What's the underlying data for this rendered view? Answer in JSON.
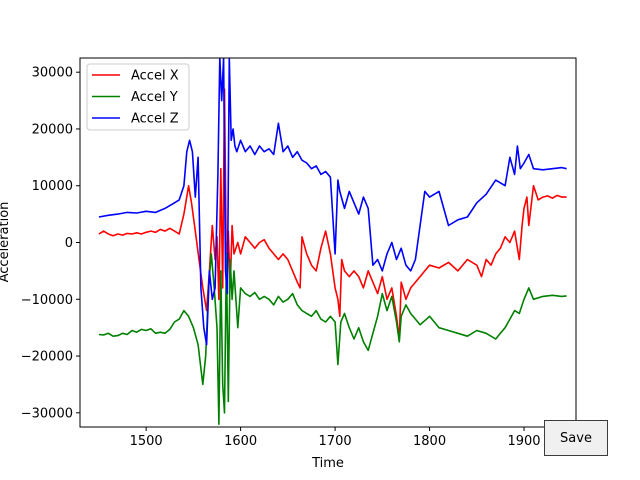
{
  "chart_data": {
    "type": "line",
    "title": "",
    "xlabel": "Time",
    "ylabel": "Acceleration",
    "xlim": [
      1430,
      1955
    ],
    "ylim": [
      -32500,
      32500
    ],
    "xticks": [
      1500,
      1600,
      1700,
      1800,
      1900
    ],
    "yticks": [
      -30000,
      -20000,
      -10000,
      0,
      10000,
      20000,
      30000
    ],
    "xtick_labels": [
      "1500",
      "1600",
      "1700",
      "1800",
      "1900"
    ],
    "ytick_labels": [
      "−30000",
      "−20000",
      "−10000",
      "0",
      "10000",
      "20000",
      "30000"
    ],
    "grid": false,
    "legend_position": "top-left",
    "series": [
      {
        "name": "Accel X",
        "color": "#ff0000",
        "x": [
          1450,
          1455,
          1460,
          1465,
          1470,
          1475,
          1480,
          1485,
          1490,
          1495,
          1500,
          1505,
          1510,
          1515,
          1520,
          1525,
          1530,
          1535,
          1540,
          1545,
          1548,
          1552,
          1556,
          1560,
          1564,
          1567,
          1570,
          1573,
          1575,
          1577,
          1579,
          1581,
          1583,
          1585,
          1587,
          1589,
          1591,
          1593,
          1595,
          1597,
          1600,
          1605,
          1610,
          1615,
          1620,
          1625,
          1630,
          1635,
          1640,
          1645,
          1650,
          1655,
          1660,
          1663,
          1665,
          1670,
          1675,
          1680,
          1685,
          1690,
          1695,
          1700,
          1703,
          1705,
          1707,
          1710,
          1715,
          1720,
          1725,
          1730,
          1735,
          1740,
          1745,
          1750,
          1755,
          1760,
          1765,
          1768,
          1770,
          1775,
          1780,
          1785,
          1790,
          1795,
          1800,
          1810,
          1820,
          1830,
          1840,
          1850,
          1855,
          1860,
          1865,
          1870,
          1875,
          1880,
          1885,
          1890,
          1895,
          1898,
          1900,
          1903,
          1905,
          1910,
          1915,
          1920,
          1925,
          1930,
          1935,
          1940,
          1945
        ],
        "y": [
          1500,
          2000,
          1500,
          1200,
          1500,
          1300,
          1600,
          1500,
          1700,
          1500,
          1800,
          2000,
          1800,
          2300,
          2000,
          2500,
          2000,
          1500,
          5000,
          10000,
          7000,
          2000,
          -3000,
          -8000,
          -12000,
          -5000,
          3000,
          -3000,
          1000,
          -10000,
          13000,
          -8000,
          27000,
          -5000,
          2000,
          -8000,
          3000,
          -2000,
          -1000,
          0,
          -2000,
          1000,
          0,
          -1000,
          0,
          500,
          -1000,
          -2000,
          -3000,
          -2000,
          -3000,
          -5000,
          -7000,
          -8000,
          1000,
          -2000,
          -4000,
          -5000,
          -1000,
          2000,
          -2000,
          -8000,
          -10000,
          -13000,
          -3000,
          -5000,
          -6000,
          -5000,
          -6000,
          -8000,
          -5000,
          -7000,
          -9000,
          -6000,
          -10000,
          -8000,
          -13000,
          -17000,
          -7000,
          -10000,
          -8000,
          -7000,
          -6000,
          -5000,
          -4000,
          -4500,
          -3500,
          -5000,
          -3000,
          -4000,
          -6000,
          -3000,
          -4000,
          -2000,
          -1000,
          1000,
          0,
          2000,
          -3000,
          3000,
          6000,
          8000,
          3000,
          10000,
          7500,
          8000,
          8200,
          7800,
          8300,
          8000,
          8000
        ]
      },
      {
        "name": "Accel Y",
        "color": "#008000",
        "x": [
          1450,
          1455,
          1460,
          1465,
          1470,
          1475,
          1480,
          1485,
          1490,
          1495,
          1500,
          1505,
          1510,
          1515,
          1520,
          1525,
          1530,
          1535,
          1540,
          1545,
          1550,
          1555,
          1560,
          1563,
          1566,
          1569,
          1572,
          1575,
          1577,
          1579,
          1581,
          1583,
          1585,
          1587,
          1589,
          1591,
          1593,
          1595,
          1597,
          1600,
          1605,
          1610,
          1615,
          1620,
          1625,
          1630,
          1635,
          1640,
          1645,
          1650,
          1655,
          1660,
          1665,
          1670,
          1675,
          1680,
          1685,
          1690,
          1695,
          1700,
          1703,
          1706,
          1710,
          1715,
          1720,
          1725,
          1730,
          1735,
          1740,
          1745,
          1750,
          1755,
          1760,
          1765,
          1768,
          1770,
          1775,
          1780,
          1790,
          1800,
          1810,
          1820,
          1830,
          1840,
          1850,
          1860,
          1870,
          1875,
          1880,
          1885,
          1890,
          1895,
          1900,
          1905,
          1910,
          1920,
          1930,
          1940,
          1945
        ],
        "y": [
          -16200,
          -16300,
          -16000,
          -16500,
          -16400,
          -16000,
          -16200,
          -15500,
          -15800,
          -15300,
          -15500,
          -15200,
          -16000,
          -15800,
          -16000,
          -15300,
          -14000,
          -13500,
          -12000,
          -13000,
          -15000,
          -18000,
          -25000,
          -20000,
          -8000,
          -2000,
          -8000,
          -15000,
          -32000,
          -5000,
          -25000,
          -30000,
          -2000,
          -28000,
          -3000,
          -10000,
          -5000,
          -10000,
          -15000,
          -8000,
          -9000,
          -9500,
          -8800,
          -10000,
          -9500,
          -10000,
          -11000,
          -9500,
          -10500,
          -10000,
          -9000,
          -11000,
          -12000,
          -12500,
          -13000,
          -12000,
          -13500,
          -14000,
          -13000,
          -14000,
          -21500,
          -14000,
          -12500,
          -15000,
          -17000,
          -15000,
          -17500,
          -19000,
          -16000,
          -13000,
          -9000,
          -12000,
          -9500,
          -14000,
          -17500,
          -13000,
          -11000,
          -12500,
          -14500,
          -13000,
          -15000,
          -15500,
          -16000,
          -16500,
          -15500,
          -16000,
          -17000,
          -16000,
          -15000,
          -13500,
          -12000,
          -12500,
          -10000,
          -8000,
          -10000,
          -9500,
          -9300,
          -9500,
          -9400
        ]
      },
      {
        "name": "Accel Z",
        "color": "#0000ff",
        "x": [
          1450,
          1460,
          1470,
          1480,
          1490,
          1500,
          1510,
          1520,
          1530,
          1535,
          1540,
          1543,
          1546,
          1549,
          1552,
          1555,
          1558,
          1561,
          1564,
          1567,
          1570,
          1573,
          1576,
          1578,
          1580,
          1582,
          1584,
          1586,
          1588,
          1590,
          1592,
          1594,
          1596,
          1600,
          1605,
          1610,
          1615,
          1620,
          1625,
          1630,
          1635,
          1640,
          1645,
          1650,
          1655,
          1660,
          1665,
          1670,
          1675,
          1680,
          1685,
          1690,
          1695,
          1700,
          1703,
          1705,
          1710,
          1715,
          1720,
          1725,
          1730,
          1735,
          1740,
          1745,
          1750,
          1755,
          1760,
          1765,
          1770,
          1775,
          1780,
          1785,
          1790,
          1795,
          1800,
          1810,
          1820,
          1830,
          1840,
          1850,
          1860,
          1870,
          1880,
          1885,
          1890,
          1893,
          1896,
          1900,
          1905,
          1910,
          1920,
          1930,
          1940,
          1945
        ],
        "y": [
          4500,
          4800,
          5000,
          5300,
          5200,
          5500,
          5300,
          6000,
          7000,
          7500,
          10000,
          16000,
          18000,
          16000,
          8000,
          15000,
          -8000,
          -15000,
          -18000,
          -5000,
          -10000,
          -8000,
          12000,
          32500,
          25000,
          32500,
          -5000,
          -9000,
          32500,
          18000,
          20000,
          17000,
          16000,
          18000,
          16000,
          17000,
          15500,
          17000,
          16000,
          16500,
          15500,
          21000,
          16000,
          17000,
          15000,
          16000,
          14500,
          14000,
          13000,
          13500,
          12000,
          12500,
          11500,
          -2000,
          11000,
          9000,
          6000,
          9000,
          7000,
          5000,
          8000,
          6000,
          -4000,
          -3000,
          -5000,
          -2000,
          0,
          -3000,
          -1000,
          -4000,
          -5000,
          -3000,
          3000,
          9000,
          8000,
          9000,
          3000,
          4000,
          4500,
          7000,
          8500,
          11000,
          10000,
          15000,
          12000,
          17000,
          13000,
          14000,
          15500,
          13000,
          12800,
          13000,
          13200,
          13000
        ]
      }
    ]
  },
  "save_button": {
    "label": "Save"
  }
}
